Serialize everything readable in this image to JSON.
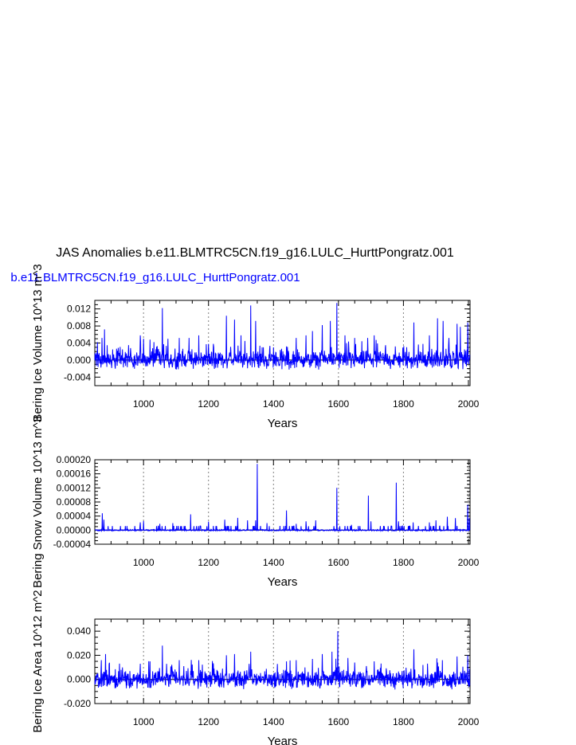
{
  "title": "JAS Anomalies b.e11.BLMTRC5CN.f19_g16.LULC_HurttPongratz.001",
  "subtitle": "b.e11.BLMTRC5CN.f19_g16.LULC_HurttPongratz.001",
  "colors": {
    "series": "#0000ff",
    "subtitle": "#0000ff",
    "refline": "#808080"
  },
  "chart_data": [
    {
      "type": "line",
      "ylabel": "Bering Ice Volume 10^13 m^3",
      "xlabel": "Years",
      "xlim": [
        850,
        2005
      ],
      "ylim": [
        -0.006,
        0.014
      ],
      "x_ticks": [
        1000,
        1200,
        1400,
        1600,
        1800,
        2000
      ],
      "y_ticks": [
        -0.004,
        0.0,
        0.004,
        0.008,
        0.012
      ],
      "y_tick_labels": [
        "-0.004",
        "0.000",
        "0.004",
        "0.008",
        "0.012"
      ],
      "vlines": [
        1000,
        1200,
        1400,
        1600,
        1800,
        2000
      ],
      "series": [
        {
          "noise": 0.0024,
          "floor": -0.0045,
          "peaks": [
            [
              858,
              0.0042
            ],
            [
              872,
              0.0052
            ],
            [
              880,
              0.0072
            ],
            [
              905,
              0.0025
            ],
            [
              935,
              0.0025
            ],
            [
              960,
              0.0028
            ],
            [
              990,
              0.0058
            ],
            [
              1000,
              0.005
            ],
            [
              1020,
              0.0048
            ],
            [
              1032,
              0.0042
            ],
            [
              1058,
              0.0122
            ],
            [
              1075,
              0.005
            ],
            [
              1110,
              0.0052
            ],
            [
              1140,
              0.0052
            ],
            [
              1170,
              0.0058
            ],
            [
              1200,
              0.0038
            ],
            [
              1215,
              0.0038
            ],
            [
              1255,
              0.0104
            ],
            [
              1280,
              0.0095
            ],
            [
              1300,
              0.0058
            ],
            [
              1330,
              0.0128
            ],
            [
              1345,
              0.0092
            ],
            [
              1365,
              0.003
            ],
            [
              1400,
              0.003
            ],
            [
              1440,
              0.0032
            ],
            [
              1470,
              0.0052
            ],
            [
              1500,
              0.0058
            ],
            [
              1520,
              0.0068
            ],
            [
              1550,
              0.0082
            ],
            [
              1575,
              0.0092
            ],
            [
              1595,
              0.0134
            ],
            [
              1620,
              0.0058
            ],
            [
              1650,
              0.0052
            ],
            [
              1690,
              0.0052
            ],
            [
              1710,
              0.0058
            ],
            [
              1745,
              0.0035
            ],
            [
              1775,
              0.0032
            ],
            [
              1832,
              0.0088
            ],
            [
              1860,
              0.0038
            ],
            [
              1880,
              0.0058
            ],
            [
              1905,
              0.0098
            ],
            [
              1922,
              0.0092
            ],
            [
              1940,
              0.0052
            ],
            [
              1965,
              0.0085
            ],
            [
              1975,
              0.0078
            ],
            [
              1998,
              0.0088
            ]
          ]
        }
      ]
    },
    {
      "type": "line",
      "ylabel": "Bering Snow Volume 10^13 m^3",
      "xlabel": "Years",
      "xlim": [
        850,
        2005
      ],
      "ylim": [
        -4e-05,
        0.0002
      ],
      "x_ticks": [
        1000,
        1200,
        1400,
        1600,
        1800,
        2000
      ],
      "y_ticks": [
        -4e-05,
        0.0,
        4e-05,
        8e-05,
        0.00012,
        0.00016,
        0.0002
      ],
      "y_tick_labels": [
        "-0.00004",
        "0.00000",
        "0.00004",
        "0.00008",
        "0.00012",
        "0.00016",
        "0.00020"
      ],
      "vlines": [
        1000,
        1200,
        1400,
        1600,
        1800,
        2000
      ],
      "series": [
        {
          "noise": 2e-06,
          "floor": -2e-06,
          "peaks": [
            [
              873,
              4.8e-05
            ],
            [
              878,
              3e-05
            ],
            [
              990,
              2.2e-05
            ],
            [
              1000,
              2.6e-05
            ],
            [
              1050,
              1.8e-05
            ],
            [
              1090,
              2e-05
            ],
            [
              1145,
              4.5e-05
            ],
            [
              1200,
              2.4e-05
            ],
            [
              1250,
              3e-05
            ],
            [
              1290,
              3.5e-05
            ],
            [
              1320,
              2.8e-05
            ],
            [
              1345,
              2.8e-05
            ],
            [
              1350,
              0.000188
            ],
            [
              1380,
              2e-05
            ],
            [
              1440,
              5.6e-05
            ],
            [
              1470,
              1.8e-05
            ],
            [
              1500,
              2.5e-05
            ],
            [
              1530,
              2.8e-05
            ],
            [
              1595,
              0.00012
            ],
            [
              1640,
              1.5e-05
            ],
            [
              1692,
              9.8e-05
            ],
            [
              1700,
              2.5e-05
            ],
            [
              1778,
              0.000135
            ],
            [
              1785,
              2.5e-05
            ],
            [
              1830,
              2.2e-05
            ],
            [
              1880,
              2.2e-05
            ],
            [
              1900,
              2.8e-05
            ],
            [
              1935,
              3.8e-05
            ],
            [
              1960,
              3.4e-05
            ],
            [
              1998,
              7.2e-05
            ],
            [
              2003,
              3.4e-05
            ]
          ]
        }
      ]
    },
    {
      "type": "line",
      "ylabel": "Bering Ice Area 10^12 m^2",
      "xlabel": "Years",
      "xlim": [
        850,
        2005
      ],
      "ylim": [
        -0.02,
        0.05
      ],
      "x_ticks": [
        1000,
        1200,
        1400,
        1600,
        1800,
        2000
      ],
      "y_ticks": [
        -0.02,
        0.0,
        0.02,
        0.04
      ],
      "y_tick_labels": [
        "-0.020",
        "0.000",
        "0.020",
        "0.040"
      ],
      "vlines": [
        1000,
        1200,
        1400,
        1600,
        1800,
        2000
      ],
      "series": [
        {
          "noise": 0.0085,
          "floor": -0.0125,
          "peaks": [
            [
              870,
              0.016
            ],
            [
              883,
              0.021
            ],
            [
              935,
              0.01
            ],
            [
              990,
              0.013
            ],
            [
              1020,
              0.015
            ],
            [
              1058,
              0.028
            ],
            [
              1110,
              0.016
            ],
            [
              1170,
              0.016
            ],
            [
              1255,
              0.02
            ],
            [
              1280,
              0.021
            ],
            [
              1330,
              0.023
            ],
            [
              1440,
              0.015
            ],
            [
              1470,
              0.016
            ],
            [
              1520,
              0.017
            ],
            [
              1550,
              0.021
            ],
            [
              1580,
              0.023
            ],
            [
              1598,
              0.04
            ],
            [
              1650,
              0.014
            ],
            [
              1710,
              0.015
            ],
            [
              1832,
              0.025
            ],
            [
              1860,
              0.012
            ],
            [
              1905,
              0.014
            ],
            [
              1920,
              0.016
            ],
            [
              1965,
              0.019
            ],
            [
              1998,
              0.02
            ]
          ]
        }
      ]
    }
  ]
}
